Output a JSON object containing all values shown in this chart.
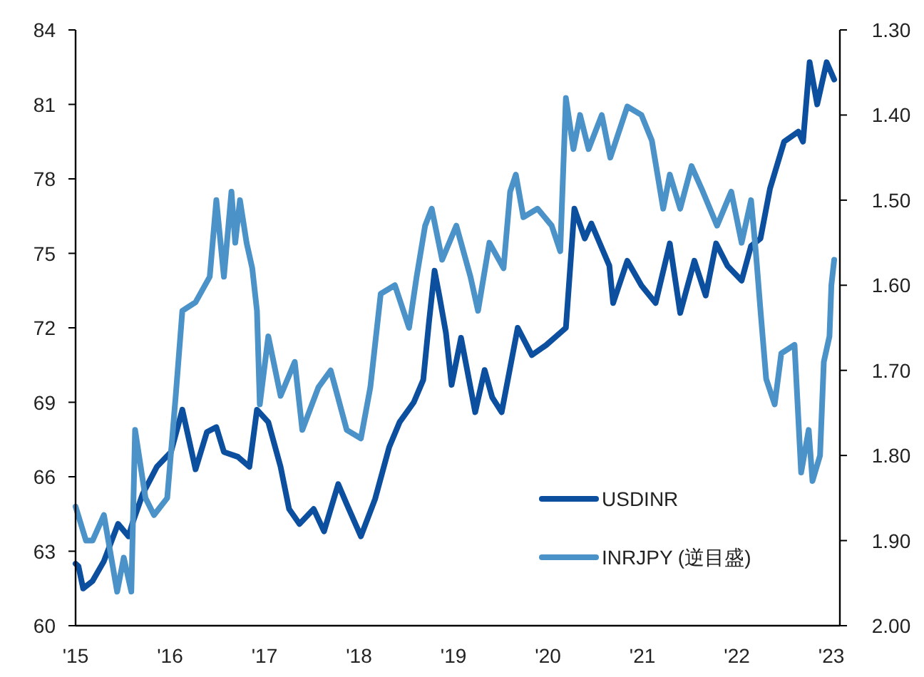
{
  "chart_data": {
    "type": "line",
    "xlim": [
      2015,
      2023.09
    ],
    "xticks": [
      {
        "value": 2015,
        "label": "'15"
      },
      {
        "value": 2016,
        "label": "'16"
      },
      {
        "value": 2017,
        "label": "'17"
      },
      {
        "value": 2018,
        "label": "'18"
      },
      {
        "value": 2019,
        "label": "'19"
      },
      {
        "value": 2020,
        "label": "'20"
      },
      {
        "value": 2021,
        "label": "'21"
      },
      {
        "value": 2022,
        "label": "'22"
      },
      {
        "value": 2023,
        "label": "'23"
      }
    ],
    "ylim": [
      60,
      84
    ],
    "yticks": [
      60,
      63,
      66,
      69,
      72,
      75,
      78,
      81,
      84
    ],
    "y2lim": [
      2.0,
      1.3
    ],
    "y2ticks": [
      {
        "value": 1.3,
        "label": "1.30"
      },
      {
        "value": 1.4,
        "label": "1.40"
      },
      {
        "value": 1.5,
        "label": "1.50"
      },
      {
        "value": 1.6,
        "label": "1.60"
      },
      {
        "value": 1.7,
        "label": "1.70"
      },
      {
        "value": 1.8,
        "label": "1.80"
      },
      {
        "value": 1.9,
        "label": "1.90"
      },
      {
        "value": 2.0,
        "label": "2.00"
      }
    ],
    "grid": false,
    "legend": "bottom right",
    "line_style": "solid",
    "series": [
      {
        "name": "USDINR",
        "color": "#0b4f9e",
        "x": [
          2015.0,
          2015.03,
          2015.08,
          2015.18,
          2015.3,
          2015.45,
          2015.56,
          2015.6,
          2015.71,
          2015.86,
          2016.01,
          2016.13,
          2016.27,
          2016.39,
          2016.49,
          2016.57,
          2016.72,
          2016.84,
          2016.92,
          2017.04,
          2017.17,
          2017.26,
          2017.37,
          2017.52,
          2017.63,
          2017.78,
          2017.87,
          2018.02,
          2018.17,
          2018.32,
          2018.43,
          2018.58,
          2018.68,
          2018.74,
          2018.8,
          2018.85,
          2018.92,
          2018.98,
          2019.08,
          2019.23,
          2019.33,
          2019.41,
          2019.51,
          2019.68,
          2019.83,
          2019.98,
          2020.13,
          2020.19,
          2020.28,
          2020.39,
          2020.46,
          2020.65,
          2020.69,
          2020.84,
          2020.99,
          2021.14,
          2021.29,
          2021.4,
          2021.55,
          2021.67,
          2021.78,
          2021.9,
          2022.05,
          2022.15,
          2022.25,
          2022.35,
          2022.5,
          2022.65,
          2022.7,
          2022.77,
          2022.85,
          2022.95,
          2023.03
        ],
        "values": [
          62.5,
          62.4,
          61.5,
          61.8,
          62.6,
          64.1,
          63.6,
          64.1,
          65.3,
          66.4,
          67.0,
          68.7,
          66.3,
          67.8,
          68.0,
          67.0,
          66.8,
          66.4,
          68.7,
          68.2,
          66.4,
          64.7,
          64.1,
          64.7,
          63.8,
          65.7,
          64.9,
          63.6,
          65.1,
          67.2,
          68.2,
          69.0,
          69.9,
          72.2,
          74.3,
          73.3,
          71.8,
          69.7,
          71.6,
          68.6,
          70.3,
          69.2,
          68.6,
          72.0,
          70.9,
          71.3,
          71.8,
          72.0,
          76.8,
          75.6,
          76.2,
          74.5,
          73.0,
          74.7,
          73.7,
          73.0,
          75.4,
          72.6,
          74.7,
          73.3,
          75.4,
          74.5,
          73.9,
          75.3,
          75.6,
          77.6,
          79.5,
          79.9,
          79.5,
          82.7,
          81.0,
          82.7,
          82.0
        ]
      },
      {
        "name": "INRJPY (逆目盛)",
        "color": "#4a92c8",
        "axis": "y2",
        "x": [
          2015.0,
          2015.11,
          2015.18,
          2015.3,
          2015.44,
          2015.51,
          2015.59,
          2015.63,
          2015.74,
          2015.83,
          2015.97,
          2016.06,
          2016.13,
          2016.27,
          2016.42,
          2016.49,
          2016.57,
          2016.65,
          2016.69,
          2016.74,
          2016.81,
          2016.87,
          2016.92,
          2016.95,
          2017.04,
          2017.17,
          2017.32,
          2017.4,
          2017.57,
          2017.7,
          2017.87,
          2018.02,
          2018.12,
          2018.23,
          2018.38,
          2018.53,
          2018.61,
          2018.7,
          2018.77,
          2018.88,
          2019.03,
          2019.18,
          2019.26,
          2019.29,
          2019.38,
          2019.53,
          2019.6,
          2019.66,
          2019.74,
          2019.89,
          2020.04,
          2020.13,
          2020.19,
          2020.27,
          2020.34,
          2020.43,
          2020.57,
          2020.66,
          2020.84,
          2020.99,
          2021.1,
          2021.22,
          2021.29,
          2021.4,
          2021.52,
          2021.64,
          2021.79,
          2021.94,
          2022.05,
          2022.15,
          2022.2,
          2022.25,
          2022.31,
          2022.4,
          2022.47,
          2022.61,
          2022.68,
          2022.76,
          2022.8,
          2022.88,
          2022.92,
          2022.98,
          2023.0,
          2023.03
        ],
        "values": [
          1.86,
          1.9,
          1.9,
          1.87,
          1.96,
          1.92,
          1.96,
          1.77,
          1.85,
          1.87,
          1.85,
          1.73,
          1.63,
          1.62,
          1.59,
          1.5,
          1.59,
          1.49,
          1.55,
          1.5,
          1.55,
          1.58,
          1.63,
          1.74,
          1.66,
          1.73,
          1.69,
          1.77,
          1.72,
          1.7,
          1.77,
          1.78,
          1.72,
          1.61,
          1.6,
          1.65,
          1.59,
          1.53,
          1.51,
          1.57,
          1.53,
          1.59,
          1.63,
          1.61,
          1.55,
          1.58,
          1.49,
          1.47,
          1.52,
          1.51,
          1.53,
          1.56,
          1.38,
          1.44,
          1.4,
          1.44,
          1.4,
          1.45,
          1.39,
          1.4,
          1.43,
          1.51,
          1.47,
          1.51,
          1.46,
          1.49,
          1.53,
          1.49,
          1.55,
          1.5,
          1.56,
          1.63,
          1.71,
          1.74,
          1.68,
          1.67,
          1.82,
          1.77,
          1.83,
          1.8,
          1.69,
          1.66,
          1.6,
          1.57
        ]
      }
    ]
  }
}
